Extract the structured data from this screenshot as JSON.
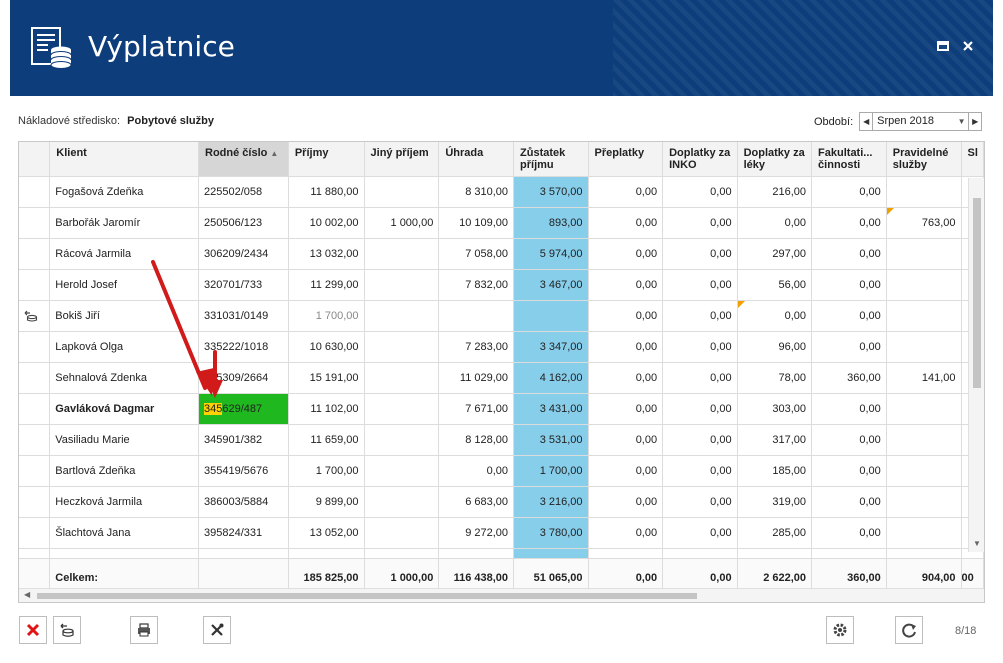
{
  "window": {
    "title": "Výplatnice",
    "maximize_label": "▪",
    "close_label": "×"
  },
  "info": {
    "cost_center_label": "Nákladové středisko:",
    "cost_center_value": "Pobytové služby",
    "period_label": "Období:",
    "period_value": "Srpen 2018"
  },
  "grid": {
    "columns": [
      "Klient",
      "Rodné číslo",
      "Příjmy",
      "Jiný příjem",
      "Úhrada",
      "Zůstatek příjmu",
      "Přeplatky",
      "Doplatky za INKO",
      "Doplatky za léky",
      "Fakultati... činnosti",
      "Pravidelné služby",
      "Sl"
    ],
    "sort_indicator": "▲",
    "rows": [
      {
        "klient": "Fogašová Zdeňka",
        "rc": "225502/058",
        "prijmy": "11 880,00",
        "jiny": "",
        "uhrada": "8 310,00",
        "zustatek": "3 570,00",
        "preplatky": "0,00",
        "inko": "0,00",
        "leky": "216,00",
        "fakult": "0,00",
        "pravidelne": ""
      },
      {
        "klient": "Barbořák Jaromír",
        "rc": "250506/123",
        "prijmy": "10 002,00",
        "jiny": "1 000,00",
        "uhrada": "10 109,00",
        "zustatek": "893,00",
        "preplatky": "0,00",
        "inko": "0,00",
        "leky": "0,00",
        "fakult": "0,00",
        "pravidelne": "763,00"
      },
      {
        "klient": "Rácová Jarmila",
        "rc": "306209/2434",
        "prijmy": "13 032,00",
        "jiny": "",
        "uhrada": "7 058,00",
        "zustatek": "5 974,00",
        "preplatky": "0,00",
        "inko": "0,00",
        "leky": "297,00",
        "fakult": "0,00",
        "pravidelne": ""
      },
      {
        "klient": "Herold Josef",
        "rc": "320701/733",
        "prijmy": "11 299,00",
        "jiny": "",
        "uhrada": "7 832,00",
        "zustatek": "3 467,00",
        "preplatky": "0,00",
        "inko": "0,00",
        "leky": "56,00",
        "fakult": "0,00",
        "pravidelne": ""
      },
      {
        "klient": "Bokiš Jiří",
        "rc": "331031/0149",
        "prijmy": "1 700,00",
        "jiny": "",
        "uhrada": "",
        "zustatek": "",
        "preplatky": "0,00",
        "inko": "0,00",
        "leky": "0,00",
        "fakult": "0,00",
        "pravidelne": ""
      },
      {
        "klient": "Lapková Olga",
        "rc": "335222/1018",
        "prijmy": "10 630,00",
        "jiny": "",
        "uhrada": "7 283,00",
        "zustatek": "3 347,00",
        "preplatky": "0,00",
        "inko": "0,00",
        "leky": "96,00",
        "fakult": "0,00",
        "pravidelne": ""
      },
      {
        "klient": "Sehnalová Zdenka",
        "rc": "335309/2664",
        "prijmy": "15 191,00",
        "jiny": "",
        "uhrada": "11 029,00",
        "zustatek": "4 162,00",
        "preplatky": "0,00",
        "inko": "0,00",
        "leky": "78,00",
        "fakult": "360,00",
        "pravidelne": "141,00"
      },
      {
        "klient": "Gavláková Dagmar",
        "rc_hl": "345",
        "rc_rest": "629/487",
        "prijmy": "11 102,00",
        "jiny": "",
        "uhrada": "7 671,00",
        "zustatek": "3 431,00",
        "preplatky": "0,00",
        "inko": "0,00",
        "leky": "303,00",
        "fakult": "0,00",
        "pravidelne": ""
      },
      {
        "klient": "Vasiliadu Marie",
        "rc": "345901/382",
        "prijmy": "11 659,00",
        "jiny": "",
        "uhrada": "8 128,00",
        "zustatek": "3 531,00",
        "preplatky": "0,00",
        "inko": "0,00",
        "leky": "317,00",
        "fakult": "0,00",
        "pravidelne": ""
      },
      {
        "klient": "Bartlová Zdeňka",
        "rc": "355419/5676",
        "prijmy": "1 700,00",
        "jiny": "",
        "uhrada": "0,00",
        "zustatek": "1 700,00",
        "preplatky": "0,00",
        "inko": "0,00",
        "leky": "185,00",
        "fakult": "0,00",
        "pravidelne": ""
      },
      {
        "klient": "Heczková Jarmila",
        "rc": "386003/5884",
        "prijmy": "9 899,00",
        "jiny": "",
        "uhrada": "6 683,00",
        "zustatek": "3 216,00",
        "preplatky": "0,00",
        "inko": "0,00",
        "leky": "319,00",
        "fakult": "0,00",
        "pravidelne": ""
      },
      {
        "klient": "Šlachtová Jana",
        "rc": "395824/331",
        "prijmy": "13 052,00",
        "jiny": "",
        "uhrada": "9 272,00",
        "zustatek": "3 780,00",
        "preplatky": "0,00",
        "inko": "0,00",
        "leky": "285,00",
        "fakult": "0,00",
        "pravidelne": ""
      }
    ],
    "totals": {
      "label": "Celkem:",
      "prijmy": "185 825,00",
      "jiny": "1 000,00",
      "uhrada": "116 438,00",
      "zustatek": "51 065,00",
      "preplatky": "0,00",
      "inko": "0,00",
      "leky": "2 622,00",
      "fakult": "360,00",
      "pravidelne": "904,00",
      "sl": "00"
    }
  },
  "toolbar": {
    "icons": [
      "close-red-icon",
      "payout-icon",
      "print-icon",
      "tools-icon",
      "gear-icon",
      "refresh-icon"
    ]
  },
  "pager": "8/18",
  "colors": {
    "titlebar": "#0d3d7a",
    "balance_column": "#87ceeb",
    "selected_cell": "#1fb81f",
    "highlight": "#ffd200",
    "arrow": "#d11a1a"
  }
}
